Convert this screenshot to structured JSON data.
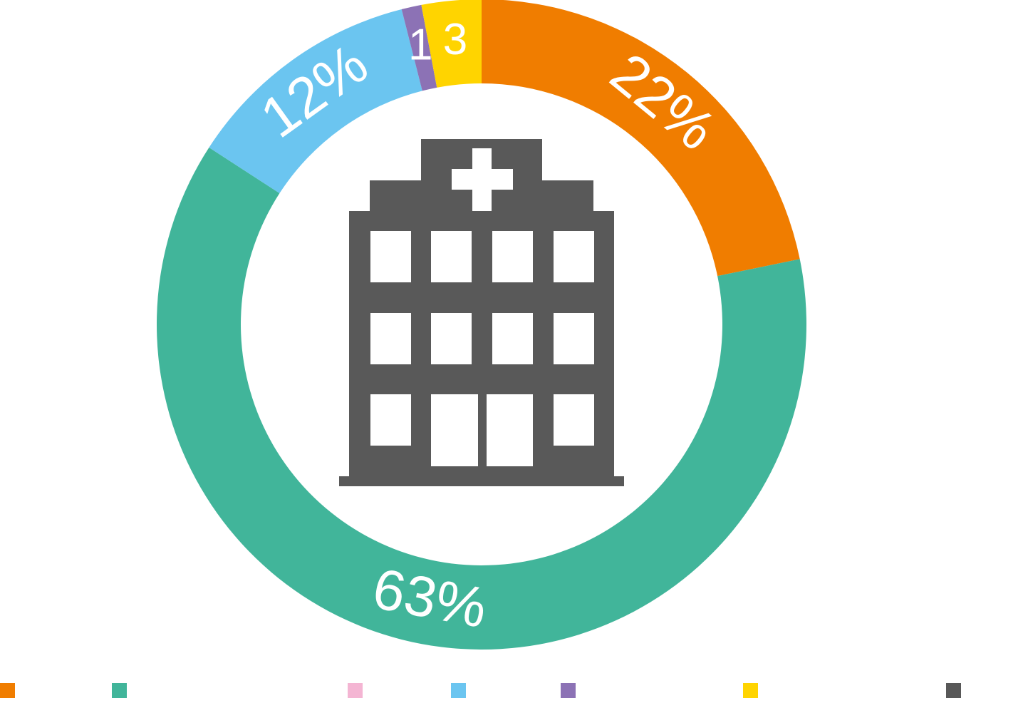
{
  "chart_data": {
    "type": "donut",
    "categories": [
      null,
      null,
      null,
      null,
      null,
      null,
      null
    ],
    "values": [
      22,
      63,
      0,
      12,
      1,
      3,
      0
    ],
    "value_labels": [
      "22%",
      "63%",
      null,
      "12%",
      "1",
      "3",
      null
    ],
    "colors": [
      "#f07d00",
      "#41b59a",
      "#f4b5d3",
      "#6bc5f0",
      "#8c72b5",
      "#ffd400",
      "#585858"
    ]
  }
}
